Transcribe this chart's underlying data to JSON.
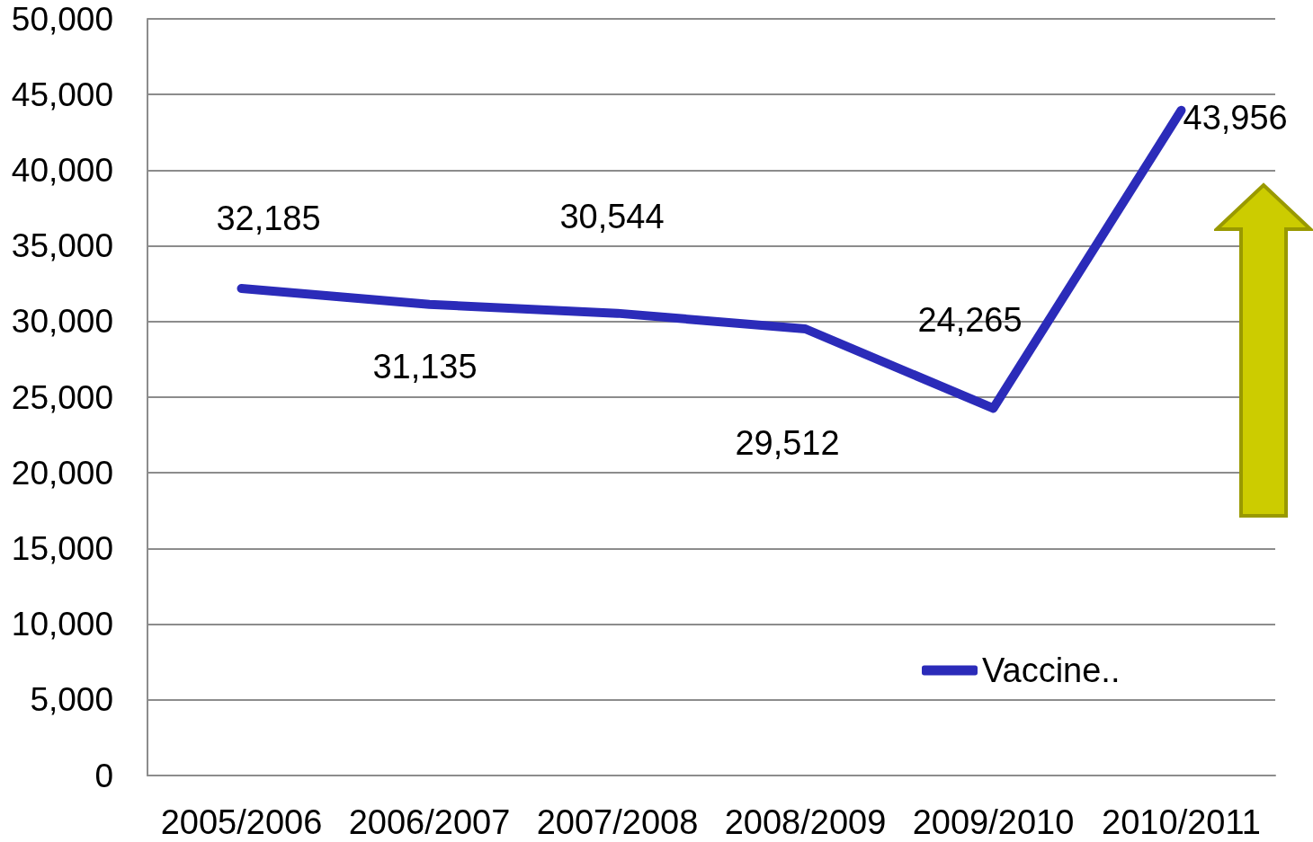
{
  "chart_data": {
    "type": "line",
    "categories": [
      "2005/2006",
      "2006/2007",
      "2007/2008",
      "2008/2009",
      "2009/2010",
      "2010/2011"
    ],
    "series": [
      {
        "name": "Vaccine..",
        "color": "#2b2bb9",
        "values": [
          32185,
          31135,
          30544,
          29512,
          24265,
          43956
        ],
        "value_labels": [
          "32,185",
          "31,135",
          "30,544",
          "29,512",
          "24,265",
          "43,956"
        ]
      }
    ],
    "ylim": [
      0,
      50000
    ],
    "yticks": [
      {
        "value": 0,
        "label": "0"
      },
      {
        "value": 5000,
        "label": "5,000"
      },
      {
        "value": 10000,
        "label": "10,000"
      },
      {
        "value": 15000,
        "label": "15,000"
      },
      {
        "value": 20000,
        "label": "20,000"
      },
      {
        "value": 25000,
        "label": "25,000"
      },
      {
        "value": 30000,
        "label": "30,000"
      },
      {
        "value": 35000,
        "label": "35,000"
      },
      {
        "value": 40000,
        "label": "40,000"
      },
      {
        "value": 45000,
        "label": "45,000"
      },
      {
        "value": 50000,
        "label": "50,000"
      }
    ],
    "grid": "y",
    "legend": "bottom right",
    "marker": "none",
    "line_style": "solid"
  }
}
